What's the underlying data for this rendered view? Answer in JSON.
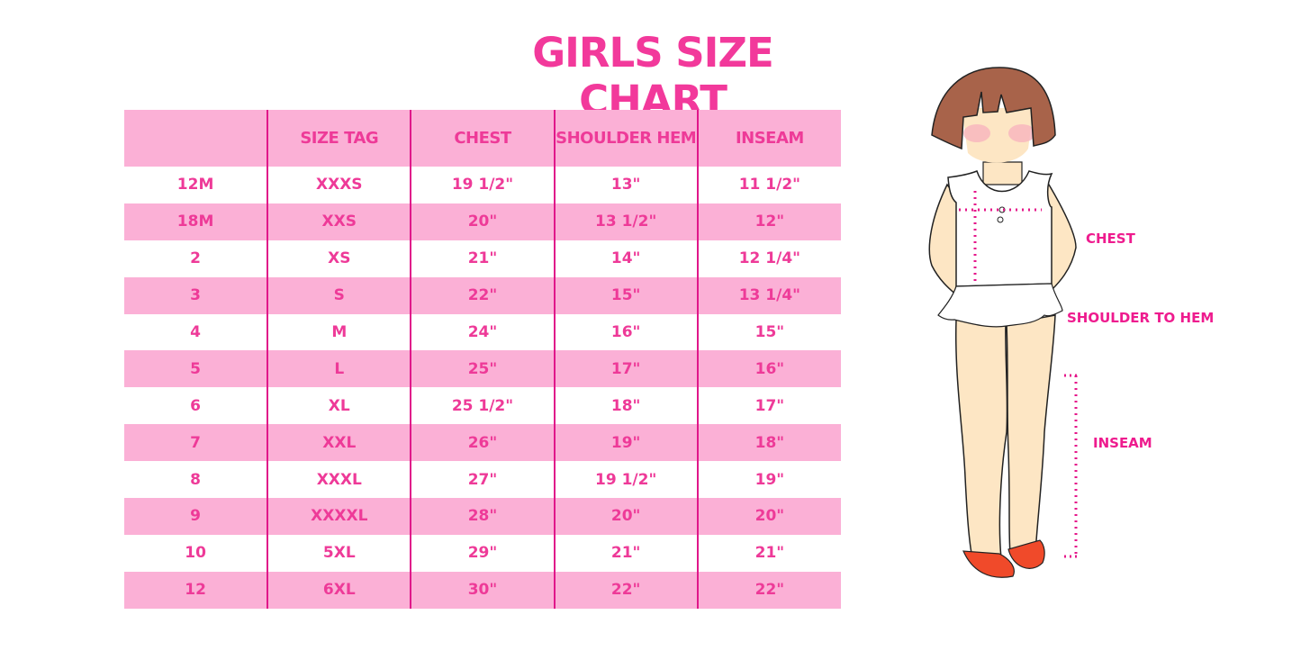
{
  "title": "GIRLS SIZE CHART",
  "colors": {
    "accent": "#ee3a98",
    "band": "#fbb0d6",
    "divider": "#e0178a"
  },
  "table": {
    "headers": [
      "",
      "SIZE TAG",
      "CHEST",
      "SHOULDER HEM",
      "INSEAM"
    ],
    "rows": [
      [
        "12M",
        "XXXS",
        "19 1/2\"",
        "13\"",
        "11 1/2\""
      ],
      [
        "18M",
        "XXS",
        "20\"",
        "13 1/2\"",
        "12\""
      ],
      [
        "2",
        "XS",
        "21\"",
        "14\"",
        "12 1/4\""
      ],
      [
        "3",
        "S",
        "22\"",
        "15\"",
        "13 1/4\""
      ],
      [
        "4",
        "M",
        "24\"",
        "16\"",
        "15\""
      ],
      [
        "5",
        "L",
        "25\"",
        "17\"",
        "16\""
      ],
      [
        "6",
        "XL",
        "25 1/2\"",
        "18\"",
        "17\""
      ],
      [
        "7",
        "XXL",
        "26\"",
        "19\"",
        "18\""
      ],
      [
        "8",
        "XXXL",
        "27\"",
        "19 1/2\"",
        "19\""
      ],
      [
        "9",
        "XXXXL",
        "28\"",
        "20\"",
        "20\""
      ],
      [
        "10",
        "5XL",
        "29\"",
        "21\"",
        "21\""
      ],
      [
        "12",
        "6XL",
        "30\"",
        "22\"",
        "22\""
      ]
    ]
  },
  "figure": {
    "chest_label": "CHEST",
    "shoulder_label": "SHOULDER TO HEM",
    "inseam_label": "INSEAM"
  }
}
